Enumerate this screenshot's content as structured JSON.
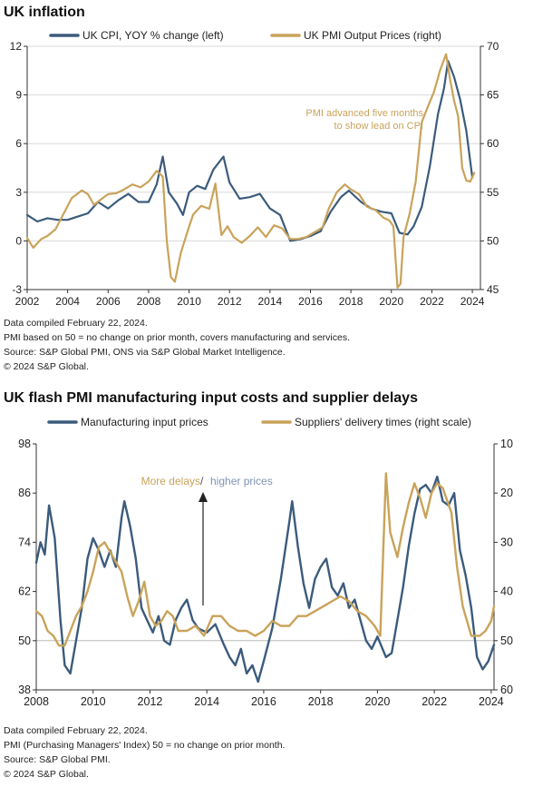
{
  "colors": {
    "blue": "#3b5b7c",
    "gold": "#c9a35a",
    "axis": "#333333",
    "grid": "#d9d9d9",
    "annotation_blue": "#7f93b3"
  },
  "chart_data": [
    {
      "type": "line",
      "title": "UK inflation",
      "x_ticks": [
        "2002",
        "2004",
        "2006",
        "2008",
        "2010",
        "2012",
        "2014",
        "2016",
        "2018",
        "2020",
        "2022",
        "2024"
      ],
      "xlim": [
        2002,
        2024.4
      ],
      "y_left_ticks": [
        "-3",
        "0",
        "3",
        "6",
        "9",
        "12"
      ],
      "ylim_left": [
        -3,
        12
      ],
      "y_right_ticks": [
        "45",
        "50",
        "55",
        "60",
        "65",
        "70"
      ],
      "ylim_right": [
        45,
        70
      ],
      "grid": "horizontal, left axis",
      "legend_position": "top",
      "annotation": "PMI advanced five months to show lead on CPI",
      "annotation_lines": [
        "PMI advanced  five months",
        "to show lead on CPI"
      ],
      "series": [
        {
          "name": "UK CPI, YOY % change (left)",
          "axis": "left",
          "color": "#3b5b7c",
          "x": [
            2002.0,
            2002.5,
            2003.0,
            2003.5,
            2004.0,
            2004.5,
            2005.0,
            2005.5,
            2006.0,
            2006.5,
            2007.0,
            2007.5,
            2008.0,
            2008.4,
            2008.7,
            2009.0,
            2009.4,
            2009.7,
            2010.0,
            2010.4,
            2010.8,
            2011.2,
            2011.7,
            2012.0,
            2012.5,
            2013.0,
            2013.5,
            2014.0,
            2014.5,
            2015.0,
            2015.5,
            2016.0,
            2016.5,
            2017.0,
            2017.5,
            2017.9,
            2018.5,
            2019.0,
            2019.5,
            2020.0,
            2020.4,
            2020.8,
            2021.1,
            2021.5,
            2021.9,
            2022.3,
            2022.6,
            2022.8,
            2023.1,
            2023.4,
            2023.7,
            2024.0
          ],
          "y": [
            1.6,
            1.2,
            1.4,
            1.3,
            1.3,
            1.5,
            1.7,
            2.4,
            2.0,
            2.5,
            2.9,
            2.4,
            2.4,
            3.5,
            5.2,
            3.0,
            2.3,
            1.6,
            3.0,
            3.4,
            3.2,
            4.4,
            5.2,
            3.6,
            2.6,
            2.7,
            2.9,
            2.0,
            1.6,
            0.0,
            0.1,
            0.3,
            0.6,
            1.8,
            2.7,
            3.1,
            2.4,
            2.0,
            1.8,
            1.7,
            0.5,
            0.4,
            0.9,
            2.1,
            4.6,
            7.8,
            9.4,
            11.1,
            10.1,
            8.7,
            6.8,
            3.9
          ]
        },
        {
          "name": "UK PMI Output Prices (right)",
          "axis": "right",
          "color": "#c9a35a",
          "x": [
            2002.0,
            2002.3,
            2002.7,
            2003.0,
            2003.4,
            2003.8,
            2004.2,
            2004.7,
            2005.0,
            2005.3,
            2005.6,
            2006.0,
            2006.4,
            2006.8,
            2007.2,
            2007.6,
            2008.0,
            2008.4,
            2008.7,
            2008.9,
            2009.1,
            2009.3,
            2009.6,
            2009.9,
            2010.2,
            2010.6,
            2011.0,
            2011.3,
            2011.6,
            2011.9,
            2012.2,
            2012.6,
            2013.0,
            2013.4,
            2013.8,
            2014.2,
            2014.6,
            2015.0,
            2015.4,
            2015.8,
            2016.2,
            2016.6,
            2016.9,
            2017.3,
            2017.7,
            2018.0,
            2018.4,
            2018.8,
            2019.2,
            2019.6,
            2019.9,
            2020.1,
            2020.3,
            2020.45,
            2020.6,
            2020.9,
            2021.2,
            2021.5,
            2021.8,
            2022.1,
            2022.4,
            2022.7,
            2022.9,
            2023.1,
            2023.3,
            2023.5,
            2023.7,
            2023.9,
            2024.1
          ],
          "y": [
            50.3,
            49.3,
            50.2,
            50.5,
            51.2,
            52.8,
            54.4,
            55.2,
            54.8,
            53.7,
            54.2,
            54.8,
            54.9,
            55.3,
            55.8,
            55.5,
            56.1,
            57.2,
            56.6,
            50.0,
            46.3,
            45.8,
            48.8,
            50.8,
            52.7,
            53.6,
            53.3,
            55.9,
            50.6,
            51.5,
            50.4,
            49.8,
            50.5,
            51.4,
            50.4,
            51.6,
            51.3,
            50.2,
            50.2,
            50.4,
            50.9,
            51.4,
            53.3,
            55.0,
            55.8,
            55.3,
            54.8,
            53.5,
            53.2,
            52.4,
            52.1,
            51.5,
            45.2,
            45.6,
            50.4,
            52.8,
            56.1,
            62.2,
            63.8,
            65.3,
            67.5,
            69.2,
            66.6,
            64.4,
            62.8,
            57.5,
            56.2,
            56.1,
            57.0
          ]
        }
      ]
    },
    {
      "type": "line",
      "title": "UK flash PMI manufacturing input costs and supplier delays",
      "x_ticks": [
        "2008",
        "2010",
        "2012",
        "2014",
        "2016",
        "2018",
        "2020",
        "2022",
        "2024"
      ],
      "xlim": [
        2008,
        2024.1
      ],
      "y_left_ticks": [
        "38",
        "50",
        "62",
        "74",
        "86",
        "98"
      ],
      "ylim_left": [
        38,
        98
      ],
      "y_right_ticks": [
        "10",
        "20",
        "30",
        "40",
        "50",
        "60"
      ],
      "ylim_right": [
        10,
        60
      ],
      "right_axis_inverted": true,
      "grid": "baseline at 50",
      "legend_position": "top",
      "annotation_parts": [
        "More delays",
        " / ",
        "higher prices"
      ],
      "series": [
        {
          "name": "Manufacturing input prices",
          "axis": "left",
          "color": "#3b5b7c",
          "x": [
            2008.0,
            2008.15,
            2008.3,
            2008.45,
            2008.65,
            2008.85,
            2009.0,
            2009.2,
            2009.4,
            2009.6,
            2009.8,
            2010.0,
            2010.2,
            2010.4,
            2010.6,
            2010.8,
            2011.0,
            2011.1,
            2011.3,
            2011.5,
            2011.7,
            2011.9,
            2012.1,
            2012.3,
            2012.5,
            2012.7,
            2012.9,
            2013.1,
            2013.3,
            2013.5,
            2013.7,
            2014.0,
            2014.3,
            2014.6,
            2014.8,
            2015.0,
            2015.2,
            2015.4,
            2015.6,
            2015.8,
            2016.0,
            2016.3,
            2016.6,
            2016.9,
            2017.0,
            2017.2,
            2017.4,
            2017.6,
            2017.8,
            2018.0,
            2018.2,
            2018.4,
            2018.6,
            2018.8,
            2019.0,
            2019.2,
            2019.4,
            2019.6,
            2019.8,
            2020.0,
            2020.3,
            2020.5,
            2020.7,
            2020.9,
            2021.1,
            2021.3,
            2021.5,
            2021.7,
            2021.9,
            2022.1,
            2022.3,
            2022.5,
            2022.7,
            2022.9,
            2023.1,
            2023.3,
            2023.5,
            2023.7,
            2023.9,
            2024.1
          ],
          "y": [
            69,
            74,
            71,
            83,
            75,
            55,
            44,
            42,
            50,
            58,
            70,
            75,
            72,
            68,
            72,
            68,
            80,
            84,
            78,
            70,
            58,
            55,
            52,
            56,
            50,
            49,
            55,
            58,
            60,
            55,
            53,
            52,
            54,
            49,
            46,
            44,
            48,
            42,
            44,
            40,
            45,
            53,
            65,
            79,
            84,
            73,
            64,
            58,
            65,
            68,
            70,
            63,
            61,
            64,
            58,
            60,
            55,
            50,
            48,
            51,
            46,
            47,
            55,
            63,
            73,
            81,
            87,
            88,
            86,
            90,
            84,
            83,
            86,
            72,
            66,
            58,
            46,
            43,
            45,
            49
          ]
        },
        {
          "name": "Suppliers' delivery times (right scale)",
          "axis": "right",
          "color": "#c9a35a",
          "x": [
            2008.0,
            2008.2,
            2008.4,
            2008.6,
            2008.8,
            2009.0,
            2009.2,
            2009.4,
            2009.6,
            2009.8,
            2010.0,
            2010.2,
            2010.4,
            2010.6,
            2010.8,
            2011.0,
            2011.2,
            2011.4,
            2011.6,
            2011.8,
            2012.0,
            2012.2,
            2012.4,
            2012.6,
            2012.8,
            2013.0,
            2013.3,
            2013.6,
            2013.9,
            2014.2,
            2014.5,
            2014.8,
            2015.1,
            2015.4,
            2015.7,
            2016.0,
            2016.3,
            2016.6,
            2016.9,
            2017.2,
            2017.5,
            2017.8,
            2018.1,
            2018.4,
            2018.7,
            2019.0,
            2019.3,
            2019.6,
            2019.9,
            2020.1,
            2020.3,
            2020.45,
            2020.7,
            2020.9,
            2021.1,
            2021.3,
            2021.5,
            2021.7,
            2021.9,
            2022.1,
            2022.3,
            2022.6,
            2022.8,
            2023.0,
            2023.3,
            2023.6,
            2023.8,
            2024.0,
            2024.1
          ],
          "y": [
            44,
            45,
            48,
            49,
            51,
            51,
            48,
            45,
            43,
            40,
            36,
            31,
            30,
            32,
            34,
            36,
            41,
            45,
            42,
            38,
            45,
            47,
            46,
            44,
            45,
            48,
            48,
            47,
            49,
            45,
            45,
            47,
            48,
            48,
            49,
            48,
            46,
            47,
            47,
            45,
            45,
            44,
            43,
            42,
            41,
            42,
            44,
            45,
            47,
            49,
            16,
            28,
            33,
            27,
            22,
            18,
            21,
            25,
            20,
            18,
            19,
            24,
            35,
            43,
            49,
            49,
            48,
            46,
            43
          ]
        }
      ]
    }
  ],
  "notes_top": [
    "Data compiled February 22, 2024.",
    "PMI based on 50 = no change on prior month, covers manufacturing and services.",
    "Source: S&P Global PMI,  ONS via S&P Global Market Intelligence.",
    "© 2024 S&P Global."
  ],
  "notes_bottom": [
    "Data compiled February 22, 2024.",
    "PMI (Purchasing Managers' Index) 50 = no change on prior month.",
    "Source: S&P Global PMI.",
    "© 2024 S&P Global."
  ]
}
